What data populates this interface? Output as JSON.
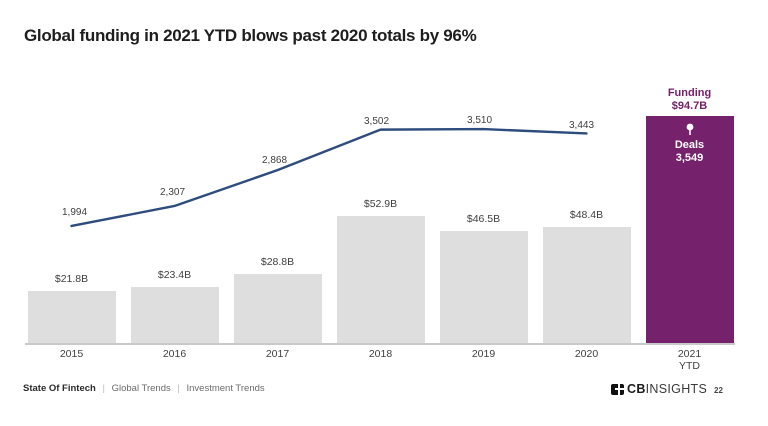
{
  "title": "Global funding in 2021 YTD blows past 2020 totals by 96%",
  "chart_data": {
    "type": "bar",
    "subtype": "combo-bar-line",
    "categories": [
      "2015",
      "2016",
      "2017",
      "2018",
      "2019",
      "2020",
      "2021\nYTD"
    ],
    "series": [
      {
        "name": "Funding",
        "type": "bar",
        "values": [
          21.8,
          23.4,
          28.8,
          52.9,
          46.5,
          48.4,
          94.7
        ],
        "labels": [
          "$21.8B",
          "$23.4B",
          "$28.8B",
          "$52.9B",
          "$46.5B",
          "$48.4B",
          "$94.7B"
        ]
      },
      {
        "name": "Deals",
        "type": "line",
        "values": [
          1994,
          2307,
          2868,
          3502,
          3510,
          3443,
          3549
        ],
        "labels": [
          "1,994",
          "2,307",
          "2,868",
          "3,502",
          "3,510",
          "3,443",
          "3,549"
        ]
      }
    ],
    "highlight_index": 6,
    "line_drawn_to_index": 5,
    "annotation": {
      "funding_label": "Funding",
      "funding_value": "$94.7B",
      "deals_label": "Deals",
      "deals_value": "3,549"
    },
    "colors": {
      "bar": "#DEDEDE",
      "highlight_bar": "#76216B",
      "line": "#2E4C7C",
      "value_label": "#3F3F3F",
      "annotation_text": "#76216B",
      "axis": "#C9C9C9"
    },
    "xlabel": "",
    "ylabel": "",
    "grid": false,
    "legend_position": "none"
  },
  "footer": {
    "section": "State Of Fintech",
    "separator": "|",
    "crumbs": [
      "Global Trends",
      "Investment Trends"
    ],
    "logo_cb": "CB",
    "logo_insights": "INSIGHTS",
    "page_number": "22"
  }
}
